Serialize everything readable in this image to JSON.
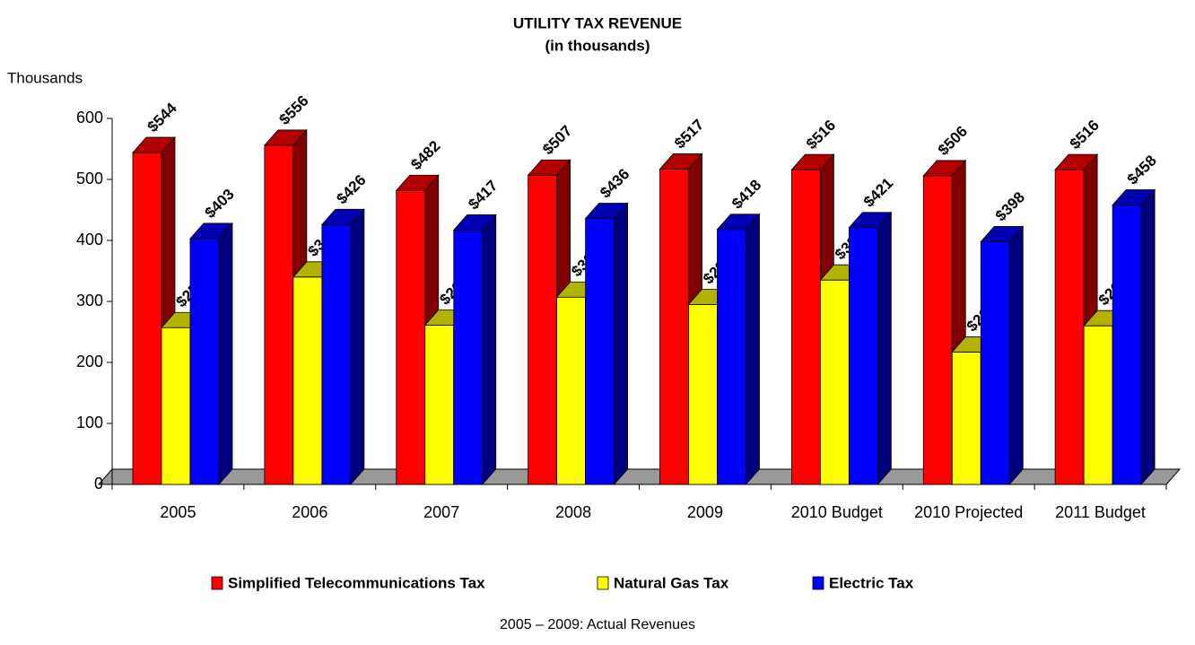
{
  "chart_data": {
    "type": "bar3d",
    "title": "UTILITY TAX REVENUE",
    "subtitle": "(in thousands)",
    "y_axis_label": "Thousands",
    "note": "2005 – 2009:  Actual Revenues",
    "categories": [
      "2005",
      "2006",
      "2007",
      "2008",
      "2009",
      "2010 Budget",
      "2010 Projected",
      "2011 Budget"
    ],
    "series": [
      {
        "name": "Simplified Telecommunications Tax",
        "color": "#ff0000",
        "values": [
          544,
          556,
          482,
          507,
          517,
          516,
          506,
          516
        ],
        "value_labels": [
          "$544",
          "$556",
          "$482",
          "$507",
          "$517",
          "$516",
          "$506",
          "$516"
        ]
      },
      {
        "name": "Natural Gas Tax",
        "color": "#ffff00",
        "values": [
          257,
          340,
          261,
          307,
          295,
          335,
          217,
          260
        ],
        "value_labels": [
          "$257",
          "$340",
          "$261",
          "$307",
          "$295",
          "$335",
          "$217",
          "$260"
        ]
      },
      {
        "name": "Electric Tax",
        "color": "#0000ff",
        "values": [
          403,
          426,
          417,
          436,
          418,
          421,
          398,
          458
        ],
        "value_labels": [
          "$403",
          "$426",
          "$417",
          "$436",
          "$418",
          "$421",
          "$398",
          "$458"
        ]
      }
    ],
    "ylim": [
      0,
      600
    ],
    "yticks": [
      0,
      100,
      200,
      300,
      400,
      500,
      600
    ],
    "legend": "bottom"
  }
}
